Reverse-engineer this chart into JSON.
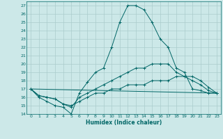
{
  "xlabel": "Humidex (Indice chaleur)",
  "bg_color": "#cce8e8",
  "grid_color": "#aacccc",
  "line_color": "#006666",
  "xlim": [
    -0.5,
    23.5
  ],
  "ylim": [
    14,
    27.5
  ],
  "xticks": [
    0,
    1,
    2,
    3,
    4,
    5,
    6,
    7,
    8,
    9,
    10,
    11,
    12,
    13,
    14,
    15,
    16,
    17,
    18,
    19,
    20,
    21,
    22,
    23
  ],
  "yticks": [
    14,
    15,
    16,
    17,
    18,
    19,
    20,
    21,
    22,
    23,
    24,
    25,
    26,
    27
  ],
  "line1_x": [
    0,
    1,
    2,
    3,
    4,
    5,
    6,
    7,
    8,
    9,
    10,
    11,
    12,
    13,
    14,
    15,
    16,
    17,
    18,
    19,
    20,
    21,
    22,
    23
  ],
  "line1_y": [
    17,
    16,
    15.5,
    15,
    14.8,
    14.0,
    16.5,
    17.8,
    19.0,
    19.5,
    22.0,
    25.0,
    27.0,
    27.0,
    26.5,
    25.0,
    23.0,
    22.0,
    19.5,
    19.0,
    17.0,
    16.8,
    16.5,
    16.5
  ],
  "line2_x": [
    0,
    1,
    2,
    3,
    4,
    5,
    6,
    7,
    8,
    9,
    10,
    11,
    12,
    13,
    14,
    15,
    16,
    17,
    18,
    19,
    20,
    21,
    22,
    23
  ],
  "line2_y": [
    17,
    16.2,
    16.0,
    15.8,
    15.2,
    14.8,
    16.0,
    16.5,
    17.0,
    17.5,
    18.0,
    18.5,
    19.0,
    19.5,
    19.5,
    20.0,
    20.0,
    20.0,
    19.0,
    18.5,
    18.0,
    17.5,
    16.8,
    16.5
  ],
  "line3_x": [
    0,
    1,
    2,
    3,
    4,
    5,
    6,
    7,
    8,
    9,
    10,
    11,
    12,
    13,
    14,
    15,
    16,
    17,
    18,
    19,
    20,
    21,
    22,
    23
  ],
  "line3_y": [
    17,
    16.2,
    16.0,
    15.8,
    15.2,
    15.0,
    15.5,
    16.0,
    16.5,
    16.5,
    17.0,
    17.0,
    17.5,
    17.5,
    17.5,
    18.0,
    18.0,
    18.0,
    18.5,
    18.5,
    18.5,
    18.0,
    17.2,
    16.5
  ],
  "line4_x": [
    0,
    23
  ],
  "line4_y": [
    17,
    16.5
  ]
}
